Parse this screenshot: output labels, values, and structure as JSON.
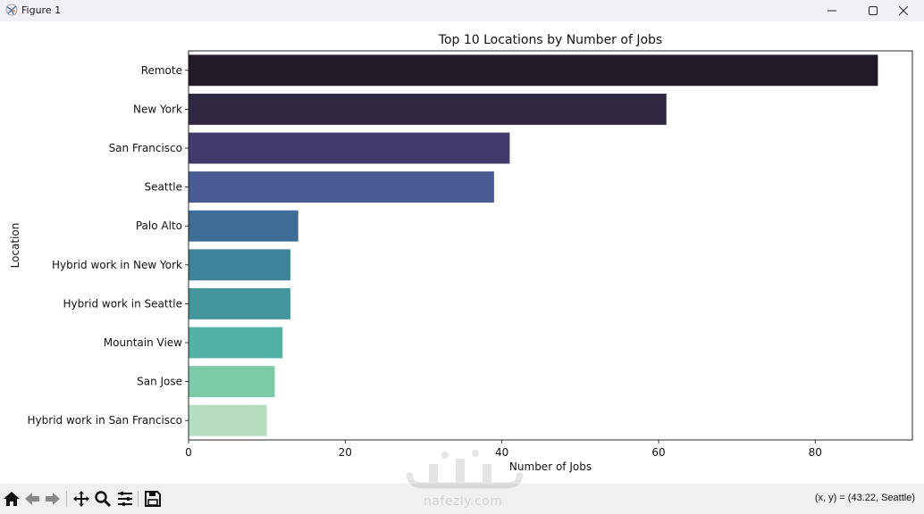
{
  "window": {
    "title": "Figure 1",
    "controls": [
      "minimize-icon",
      "maximize-icon",
      "close-icon"
    ]
  },
  "toolbar": {
    "buttons": [
      "home-icon",
      "back-arrow-icon",
      "forward-arrow-icon",
      "pan-icon",
      "zoom-icon",
      "configure-subplots-icon",
      "save-icon"
    ],
    "coords": "(x, y) = (43.22, Seattle)"
  },
  "watermark": {
    "latin_text": "nafezly.com"
  },
  "chart_data": {
    "type": "bar",
    "orientation": "horizontal",
    "title": "Top 10 Locations by Number of Jobs",
    "xlabel": "Number of Jobs",
    "ylabel": "Location",
    "categories": [
      "Remote",
      "New York",
      "San Francisco",
      "Seattle",
      "Palo Alto",
      "Hybrid work in New York",
      "Hybrid work in Seattle",
      "Mountain View",
      "San Jose",
      "Hybrid work in San Francisco"
    ],
    "values": [
      88,
      61,
      41,
      39,
      14,
      13,
      13,
      12,
      11,
      10
    ],
    "colors": [
      "#231a28",
      "#302840",
      "#443a6c",
      "#4a5a93",
      "#3e6d97",
      "#3f8398",
      "#45959c",
      "#52b2a6",
      "#7ccaa8",
      "#b6dfc0"
    ],
    "xticks": [
      0,
      20,
      40,
      60,
      80
    ],
    "xlim": [
      0,
      92.4
    ],
    "grid": false
  }
}
